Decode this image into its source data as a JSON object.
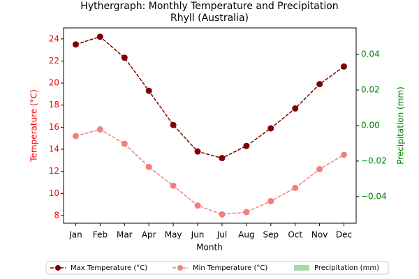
{
  "chart_data": {
    "type": "line",
    "title": "Hythergraph: Monthly Temperature and Precipitation",
    "subtitle": "Rhyll (Australia)",
    "x_label": "Month",
    "y_label": "Temperature (°C)",
    "y2_label": "Precipitation (mm)",
    "y_color": "#ff0000",
    "y2_color": "#008000",
    "categories": [
      "Jan",
      "Feb",
      "Mar",
      "Apr",
      "May",
      "Jun",
      "Jul",
      "Aug",
      "Sep",
      "Oct",
      "Nov",
      "Dec"
    ],
    "series": [
      {
        "name": "Max Temperature (°C)",
        "color": "#800000",
        "type": "line",
        "values": [
          23.5,
          24.2,
          22.3,
          19.3,
          16.2,
          13.8,
          13.2,
          14.3,
          15.9,
          17.7,
          19.9,
          21.5
        ]
      },
      {
        "name": "Min Temperature (°C)",
        "color": "#f08080",
        "type": "line",
        "values": [
          15.2,
          15.8,
          14.5,
          12.4,
          10.7,
          8.9,
          8.1,
          8.3,
          9.3,
          10.5,
          12.2,
          13.5
        ]
      },
      {
        "name": "Precipitation (mm)",
        "color": "#a8d8a8",
        "type": "bar",
        "axis": "y2",
        "values": [
          0,
          0,
          0,
          0,
          0,
          0,
          0,
          0,
          0,
          0,
          0,
          0
        ]
      }
    ],
    "ylim": [
      7.3,
      25.0
    ],
    "yticks": [
      8,
      10,
      12,
      14,
      16,
      18,
      20,
      22,
      24
    ],
    "y2lim": [
      -0.055,
      0.055
    ],
    "y2ticks": [
      {
        "value": -0.04,
        "label": "−0.04"
      },
      {
        "value": -0.02,
        "label": "−0.02"
      },
      {
        "value": 0,
        "label": "0.00"
      },
      0.02,
      0.04
    ],
    "legend": "bottom"
  }
}
